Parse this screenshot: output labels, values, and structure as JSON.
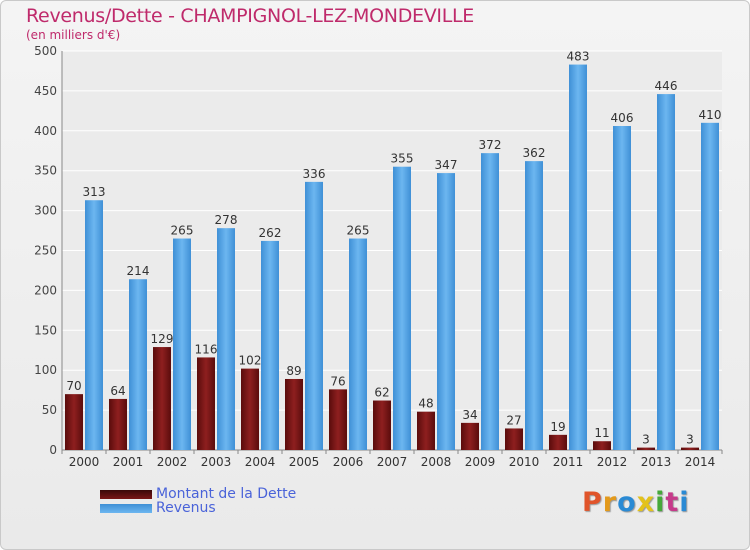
{
  "chart_data": {
    "type": "bar",
    "title": "Revenus/Dette - CHAMPIGNOL-LEZ-MONDEVILLE",
    "subtitle": "(en milliers d'€)",
    "categories": [
      "2000",
      "2001",
      "2002",
      "2003",
      "2004",
      "2005",
      "2006",
      "2007",
      "2008",
      "2009",
      "2010",
      "2011",
      "2012",
      "2013",
      "2014"
    ],
    "series": [
      {
        "name": "Montant de la Dette",
        "color": "#7a1515",
        "values": [
          70,
          64,
          129,
          116,
          102,
          89,
          76,
          62,
          48,
          34,
          27,
          19,
          11,
          3,
          3
        ]
      },
      {
        "name": "Revenus",
        "color": "#4a9de0",
        "values": [
          313,
          214,
          265,
          278,
          262,
          336,
          265,
          355,
          347,
          372,
          362,
          483,
          406,
          446,
          410
        ]
      }
    ],
    "ylim": [
      0,
      500
    ],
    "yticks": [
      0,
      50,
      100,
      150,
      200,
      250,
      300,
      350,
      400,
      450,
      500
    ],
    "grid": true,
    "legend": "bottom-left"
  },
  "logo": {
    "text": "Proxiti",
    "colors": [
      "#e0542a",
      "#e39a1c",
      "#2a8ad4",
      "#e3c21c",
      "#46a83a",
      "#c63a8a",
      "#2a8ad4"
    ]
  }
}
